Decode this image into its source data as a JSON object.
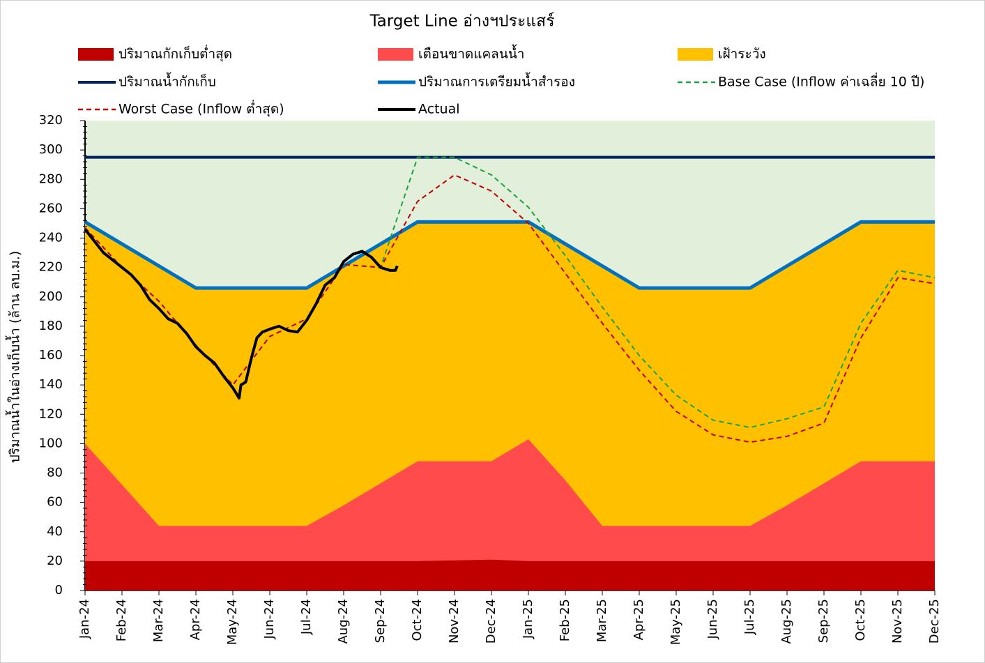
{
  "chart_data": {
    "type": "line",
    "title": "Target Line อ่างฯประแสร์",
    "y_label": "ปริมาณน้ำในอ่างเก็บน้ำ (ล้าน ลบ.ม.)",
    "categories": [
      "Jan-24",
      "Feb-24",
      "Mar-24",
      "Apr-24",
      "May-24",
      "Jun-24",
      "Jul-24",
      "Aug-24",
      "Sep-24",
      "Oct-24",
      "Nov-24",
      "Dec-24",
      "Jan-25",
      "Feb-25",
      "Mar-25",
      "Apr-25",
      "May-25",
      "Jun-25",
      "Jul-25",
      "Aug-25",
      "Sep-25",
      "Oct-25",
      "Nov-25",
      "Dec-25"
    ],
    "ylim": [
      0,
      320
    ],
    "yticks": [
      0,
      20,
      40,
      60,
      80,
      100,
      120,
      140,
      160,
      180,
      200,
      220,
      240,
      260,
      280,
      300,
      320
    ],
    "plot_background": "#e2efda",
    "series": [
      {
        "name": "ปริมาณกักเก็บต่ำสุด",
        "color": "#c00000",
        "style": "area",
        "values": [
          20,
          20,
          20,
          20,
          20,
          20,
          20,
          20,
          20,
          20,
          20.5,
          21,
          20,
          20,
          20,
          20,
          20,
          20,
          20,
          20,
          20,
          20,
          20,
          20
        ]
      },
      {
        "name": "เตือนขาดแคลนน้ำ",
        "color": "#ff4b4b",
        "style": "area",
        "values": [
          100,
          72,
          44,
          44,
          44,
          44,
          44,
          58,
          73,
          88,
          88,
          88,
          103,
          75,
          44,
          44,
          44,
          44,
          44,
          58,
          73,
          88,
          88,
          88
        ]
      },
      {
        "name": "เฝ้าระวัง",
        "color": "#ffc000",
        "style": "area",
        "values": [
          251,
          236,
          221,
          206,
          206,
          206,
          206,
          221,
          236,
          251,
          251,
          251,
          251,
          236,
          221,
          206,
          206,
          206,
          206,
          221,
          236,
          251,
          251,
          251
        ]
      },
      {
        "name": "ปริมาณน้ำกักเก็บ",
        "color": "#002060",
        "style": "solid",
        "width": 4,
        "values": [
          295,
          295,
          295,
          295,
          295,
          295,
          295,
          295,
          295,
          295,
          295,
          295,
          295,
          295,
          295,
          295,
          295,
          295,
          295,
          295,
          295,
          295,
          295,
          295
        ]
      },
      {
        "name": "ปริมาณการเตรียมน้ำสำรอง",
        "color": "#0070c0",
        "style": "solid",
        "width": 5,
        "values": [
          251,
          236,
          221,
          206,
          206,
          206,
          206,
          221,
          236,
          251,
          251,
          251,
          251,
          236,
          221,
          206,
          206,
          206,
          206,
          221,
          236,
          251,
          251,
          251
        ]
      },
      {
        "name": "Base Case (Inflow ค่าเฉลี่ย 10 ปี)",
        "color": "#1aa33c",
        "style": "dash",
        "width": 2,
        "values": [
          247,
          220,
          197,
          167,
          140,
          173,
          185,
          222,
          220,
          295,
          295,
          283,
          261,
          228,
          193,
          160,
          133,
          116,
          111,
          117,
          125,
          182,
          218,
          213
        ]
      },
      {
        "name": "Worst Case (Inflow ต่ำสุด)",
        "color": "#c00000",
        "style": "dash",
        "width": 2,
        "values": [
          247,
          220,
          197,
          167,
          140,
          173,
          185,
          222,
          220,
          265,
          283,
          272,
          250,
          216,
          182,
          150,
          122,
          106,
          101,
          105,
          114,
          172,
          213,
          209
        ]
      },
      {
        "name": "Actual",
        "color": "#000000",
        "style": "solid",
        "width": 4,
        "x": [
          0,
          0.25,
          0.5,
          0.75,
          1,
          1.25,
          1.5,
          1.75,
          2,
          2.25,
          2.5,
          2.75,
          3,
          3.25,
          3.5,
          3.75,
          4,
          4.17,
          4.22,
          4.35,
          4.5,
          4.65,
          4.8,
          5,
          5.25,
          5.5,
          5.75,
          6,
          6.25,
          6.5,
          6.75,
          7,
          7.25,
          7.5,
          7.75,
          8,
          8.25,
          8.4,
          8.45
        ],
        "values": [
          246,
          238,
          230,
          225,
          220,
          215,
          208,
          198,
          192,
          185,
          182,
          175,
          166,
          160,
          155,
          146,
          138,
          131,
          140,
          142,
          158,
          172,
          176,
          178,
          180,
          177,
          176,
          184,
          195,
          208,
          213,
          224,
          229,
          231,
          227,
          220,
          218,
          218,
          221
        ]
      }
    ]
  }
}
